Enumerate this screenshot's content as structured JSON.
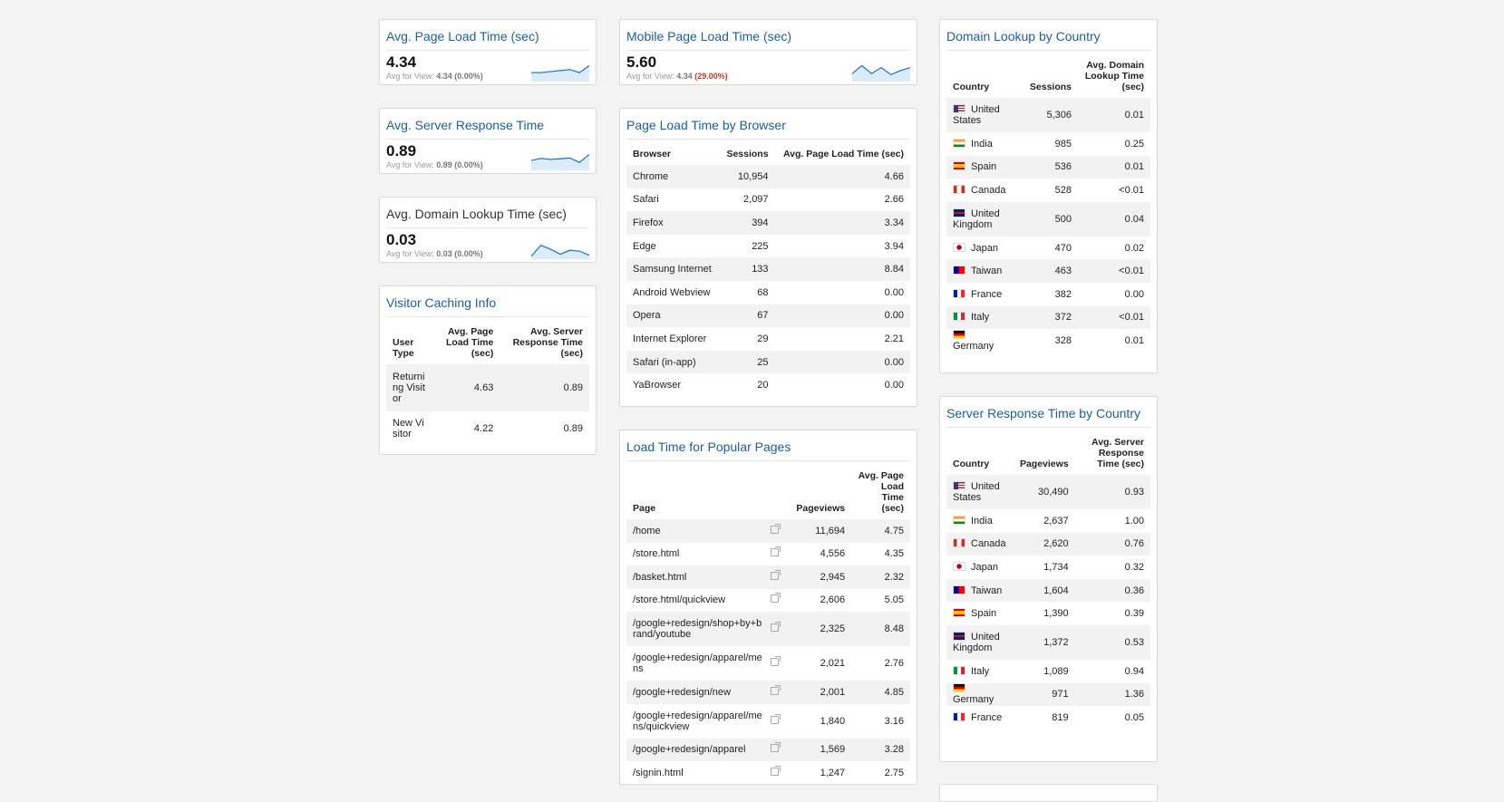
{
  "metrics": [
    {
      "title": "Avg. Page Load Time (sec)",
      "value": "4.34",
      "sub_prefix": "Avg for View:",
      "sub_value": "4.34",
      "sub_change": "(0.00%)",
      "change_color": "#777777",
      "spark": [
        0.55,
        0.55,
        0.5,
        0.45,
        0.4,
        0.55,
        0.2
      ]
    },
    {
      "title": "Mobile Page Load Time (sec)",
      "value": "5.60",
      "sub_prefix": "Avg for View:",
      "sub_value": "4.34",
      "sub_change": "(29.00%)",
      "change_color": "#c0392b",
      "spark": [
        0.6,
        0.2,
        0.6,
        0.3,
        0.65,
        0.45,
        0.3
      ]
    },
    {
      "title": "Avg. Server Response Time",
      "value": "0.89",
      "sub_prefix": "Avg for View:",
      "sub_value": "0.89",
      "sub_change": "(0.00%)",
      "change_color": "#777777",
      "spark": [
        0.5,
        0.4,
        0.45,
        0.42,
        0.38,
        0.6,
        0.2
      ]
    },
    {
      "title": "Avg. Domain Lookup Time (sec)",
      "value": "0.03",
      "sub_prefix": "Avg for View:",
      "sub_value": "0.03",
      "sub_change": "(0.00%)",
      "change_color": "#777777",
      "spark": [
        0.85,
        0.3,
        0.5,
        0.75,
        0.55,
        0.6,
        0.8
      ]
    }
  ],
  "caching": {
    "title": "Visitor Caching Info",
    "headers": [
      "User Type",
      "Avg. Page Load Time (sec)",
      "Avg. Server Response Time (sec)"
    ],
    "rows": [
      [
        "Returning Visitor",
        "4.63",
        "0.89"
      ],
      [
        "New Visitor",
        "4.22",
        "0.89"
      ]
    ]
  },
  "browser": {
    "title": "Page Load Time by Browser",
    "headers": [
      "Browser",
      "Sessions",
      "Avg. Page Load Time (sec)"
    ],
    "rows": [
      [
        "Chrome",
        "10,954",
        "4.66"
      ],
      [
        "Safari",
        "2,097",
        "2.66"
      ],
      [
        "Firefox",
        "394",
        "3.34"
      ],
      [
        "Edge",
        "225",
        "3.94"
      ],
      [
        "Samsung Internet",
        "133",
        "8.84"
      ],
      [
        "Android Webview",
        "68",
        "0.00"
      ],
      [
        "Opera",
        "67",
        "0.00"
      ],
      [
        "Internet Explorer",
        "29",
        "2.21"
      ],
      [
        "Safari (in-app)",
        "25",
        "0.00"
      ],
      [
        "YaBrowser",
        "20",
        "0.00"
      ]
    ]
  },
  "pages": {
    "title": "Load Time for Popular Pages",
    "headers": [
      "Page",
      "Pageviews",
      "Avg. Page Load Time (sec)"
    ],
    "rows": [
      [
        "/home",
        "11,694",
        "4.75"
      ],
      [
        "/store.html",
        "4,556",
        "4.35"
      ],
      [
        "/basket.html",
        "2,945",
        "2.32"
      ],
      [
        "/store.html/quickview",
        "2,606",
        "5.05"
      ],
      [
        "/google+redesign/shop+by+brand/youtube",
        "2,325",
        "8.48"
      ],
      [
        "/google+redesign/apparel/mens",
        "2,021",
        "2.76"
      ],
      [
        "/google+redesign/new",
        "2,001",
        "4.85"
      ],
      [
        "/google+redesign/apparel/mens/quickview",
        "1,840",
        "3.16"
      ],
      [
        "/google+redesign/apparel",
        "1,569",
        "3.28"
      ],
      [
        "/signin.html",
        "1,247",
        "2.75"
      ]
    ]
  },
  "domain": {
    "title": "Domain Lookup by Country",
    "headers": [
      "Country",
      "Sessions",
      "Avg. Domain Lookup Time (sec)"
    ],
    "rows": [
      [
        "us",
        "United States",
        "5,306",
        "0.01"
      ],
      [
        "in",
        "India",
        "985",
        "0.25"
      ],
      [
        "es",
        "Spain",
        "536",
        "0.01"
      ],
      [
        "ca",
        "Canada",
        "528",
        "<0.01"
      ],
      [
        "uk",
        "United Kingdom",
        "500",
        "0.04"
      ],
      [
        "jp",
        "Japan",
        "470",
        "0.02"
      ],
      [
        "tw",
        "Taiwan",
        "463",
        "<0.01"
      ],
      [
        "fr",
        "France",
        "382",
        "0.00"
      ],
      [
        "it",
        "Italy",
        "372",
        "<0.01"
      ],
      [
        "de",
        "Germany",
        "328",
        "0.01"
      ]
    ]
  },
  "server": {
    "title": "Server Response Time by Country",
    "headers": [
      "Country",
      "Pageviews",
      "Avg. Server Response Time (sec)"
    ],
    "rows": [
      [
        "us",
        "United States",
        "30,490",
        "0.93"
      ],
      [
        "in",
        "India",
        "2,637",
        "1.00"
      ],
      [
        "ca",
        "Canada",
        "2,620",
        "0.76"
      ],
      [
        "jp",
        "Japan",
        "1,734",
        "0.32"
      ],
      [
        "tw",
        "Taiwan",
        "1,604",
        "0.36"
      ],
      [
        "es",
        "Spain",
        "1,390",
        "0.39"
      ],
      [
        "uk",
        "United Kingdom",
        "1,372",
        "0.53"
      ],
      [
        "it",
        "Italy",
        "1,089",
        "0.94"
      ],
      [
        "de",
        "Germany",
        "971",
        "1.36"
      ],
      [
        "fr",
        "France",
        "819",
        "0.05"
      ]
    ]
  },
  "colors": {
    "title_blue": "#1a5f9e",
    "spark_line": "#2a7bc4",
    "spark_fill": "#dcebf8"
  }
}
